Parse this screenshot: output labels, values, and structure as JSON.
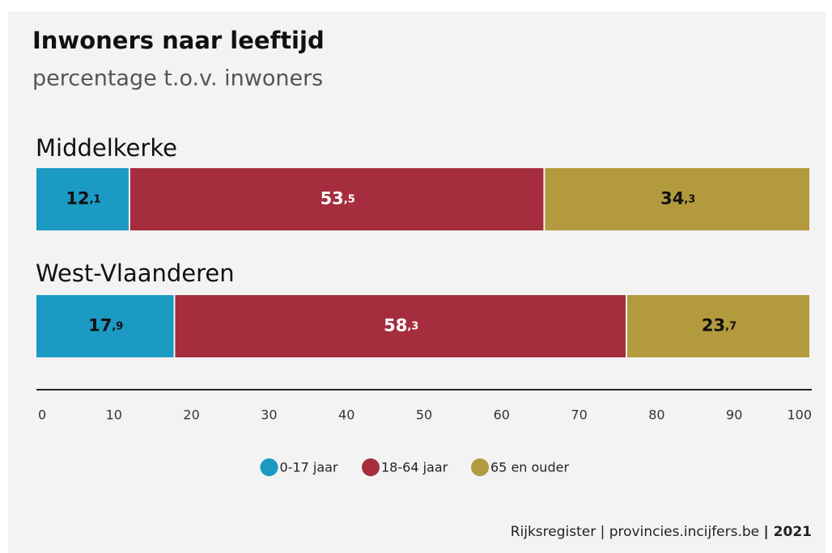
{
  "chart_data": {
    "type": "stacked_barh",
    "title": "Inwoners naar leeftijd",
    "subtitle": "percentage t.o.v. inwoners",
    "categories": [
      "Middelkerke",
      "West-Vlaanderen"
    ],
    "series": [
      {
        "name": "0-17 jaar",
        "color": "#1b9ac3",
        "label_color": "#111111",
        "values": [
          12.1,
          17.9
        ],
        "value_labels": [
          "12,1",
          "17,9"
        ]
      },
      {
        "name": "18-64 jaar",
        "color": "#a52d3d",
        "label_color": "#ffffff",
        "values": [
          53.5,
          58.3
        ],
        "value_labels": [
          "53,5",
          "58,3"
        ]
      },
      {
        "name": "65 en ouder",
        "color": "#b39a3e",
        "label_color": "#111111",
        "values": [
          34.3,
          23.7
        ],
        "value_labels": [
          "34,3",
          "23,7"
        ]
      }
    ],
    "xlim": [
      0,
      100
    ],
    "xticks": [
      0,
      10,
      20,
      30,
      40,
      50,
      60,
      70,
      80,
      90,
      100
    ],
    "source": "Rijksregister | provincies.incijfers.be",
    "source_year": "| 2021"
  }
}
